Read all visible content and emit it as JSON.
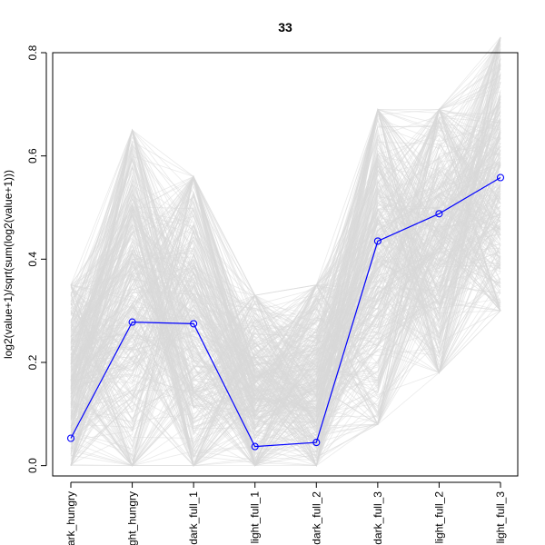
{
  "chart_data": {
    "type": "line",
    "title": "33",
    "xlabel": "",
    "ylabel": "log2(value+1)/sqrt(sum(log2(value+1)))",
    "categories": [
      "dark_hungry",
      "light_hungry",
      "dark_full_1",
      "light_full_1",
      "dark_full_2",
      "dark_full_3",
      "light_full_2",
      "light_full_3"
    ],
    "visible_tick_labels": [
      "ark_hungry",
      "ght_hungry",
      "dark_full_1",
      "light_full_1",
      "dark_full_2",
      "dark_full_3",
      "light_full_2",
      "light_full_3"
    ],
    "ylim": [
      -0.02,
      0.8
    ],
    "yticks": [
      0.0,
      0.2,
      0.4,
      0.6,
      0.8
    ],
    "ytick_labels": [
      "0.0",
      "0.2",
      "0.4",
      "0.6",
      "0.8"
    ],
    "grid": false,
    "series": [
      {
        "values": [
          0.053,
          0.278,
          0.275,
          0.037,
          0.045,
          0.435,
          0.488,
          0.558
        ],
        "color": "#0000ff",
        "marker": "open-circle"
      }
    ],
    "background_lines": {
      "color": "#d9d9d9",
      "count": 400,
      "ranges": [
        [
          0.0,
          0.35
        ],
        [
          0.0,
          0.65
        ],
        [
          0.0,
          0.56
        ],
        [
          0.0,
          0.33
        ],
        [
          0.0,
          0.35
        ],
        [
          0.08,
          0.69
        ],
        [
          0.18,
          0.69
        ],
        [
          0.3,
          0.83
        ]
      ]
    }
  }
}
